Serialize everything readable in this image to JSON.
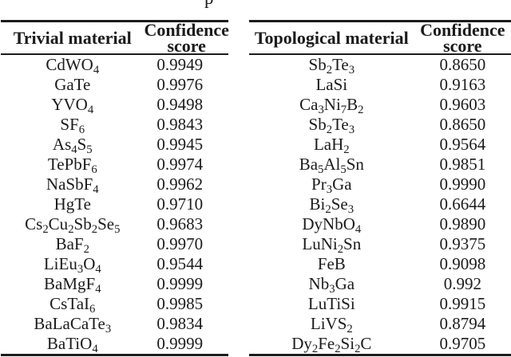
{
  "figure": {
    "caption_fragment": "p",
    "colors": {
      "background": "#ffffff",
      "text": "#1b1b1b",
      "rule": "#1c1c1c"
    }
  },
  "tables": [
    {
      "name": "trivial",
      "material_header": "Trivial material",
      "score_header_lines": [
        "Confidence",
        "score"
      ],
      "rows": [
        {
          "material": "CdWO_4",
          "score": "0.9949"
        },
        {
          "material": "GaTe",
          "score": "0.9976"
        },
        {
          "material": "YVO_4",
          "score": "0.9498"
        },
        {
          "material": "SF_6",
          "score": "0.9843"
        },
        {
          "material": "As_4S_5",
          "score": "0.9945"
        },
        {
          "material": "TePbF_6",
          "score": "0.9974"
        },
        {
          "material": "NaSbF_4",
          "score": "0.9962"
        },
        {
          "material": "HgTe",
          "score": "0.9710"
        },
        {
          "material": "Cs_2Cu_2Sb_2Se_5",
          "score": "0.9683"
        },
        {
          "material": "BaF_2",
          "score": "0.9970"
        },
        {
          "material": "LiEu_3O_4",
          "score": "0.9544"
        },
        {
          "material": "BaMgF_4",
          "score": "0.9999"
        },
        {
          "material": "CsTaI_6",
          "score": "0.9985"
        },
        {
          "material": "BaLaCaTe_3",
          "score": "0.9834"
        },
        {
          "material": "BaTiO_4",
          "score": "0.9999"
        }
      ]
    },
    {
      "name": "topological",
      "material_header": "Topological material",
      "score_header_lines": [
        "Confidence",
        "score"
      ],
      "rows": [
        {
          "material": "Sb_2Te_3",
          "score": "0.8650"
        },
        {
          "material": "LaSi",
          "score": "0.9163"
        },
        {
          "material": "Ca_3Ni_7B_2",
          "score": "0.9603"
        },
        {
          "material": "Sb_2Te_3",
          "score": "0.8650"
        },
        {
          "material": "LaH_2",
          "score": "0.9564"
        },
        {
          "material": "Ba_5Al_5Sn",
          "score": "0.9851"
        },
        {
          "material": "Pr_3Ga",
          "score": "0.9990"
        },
        {
          "material": "Bi_2Se_3",
          "score": "0.6644"
        },
        {
          "material": "DyNbO_4",
          "score": "0.9890"
        },
        {
          "material": "LuNi_2Sn",
          "score": "0.9375"
        },
        {
          "material": "FeB",
          "score": "0.9098"
        },
        {
          "material": "Nb_3Ga",
          "score": "0.992"
        },
        {
          "material": "LuTiSi",
          "score": "0.9915"
        },
        {
          "material": "LiVS_2",
          "score": "0.8794"
        },
        {
          "material": "Dy_2Fe_2Si_2C",
          "score": "0.9705"
        }
      ]
    }
  ]
}
